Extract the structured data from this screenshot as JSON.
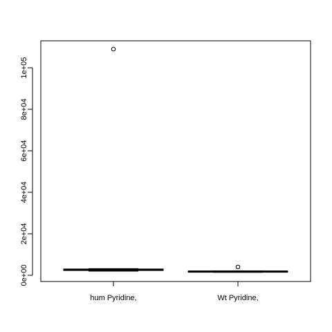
{
  "chart_data": {
    "type": "boxplot",
    "title": "",
    "xlabel": "",
    "ylabel": "",
    "ylim": [
      -3000,
      113000
    ],
    "y_ticks": [
      {
        "value": 0,
        "label": "0e+00"
      },
      {
        "value": 20000,
        "label": "2e+04"
      },
      {
        "value": 40000,
        "label": "4e+04"
      },
      {
        "value": 60000,
        "label": "6e+04"
      },
      {
        "value": 80000,
        "label": "8e+04"
      },
      {
        "value": 100000,
        "label": "1e+05"
      }
    ],
    "categories": [
      "hum Pyridine,",
      "Wt Pyridine,"
    ],
    "boxes": [
      {
        "name": "hum Pyridine,",
        "whisker_low": 2000,
        "q1": 2300,
        "median": 2700,
        "q3": 3000,
        "whisker_high": 3200,
        "outliers": [
          109000
        ]
      },
      {
        "name": "Wt Pyridine,",
        "whisker_low": 1400,
        "q1": 1600,
        "median": 1800,
        "q3": 1950,
        "whisker_high": 2100,
        "outliers": [
          4000
        ]
      }
    ],
    "grid": false,
    "legend": "none"
  }
}
